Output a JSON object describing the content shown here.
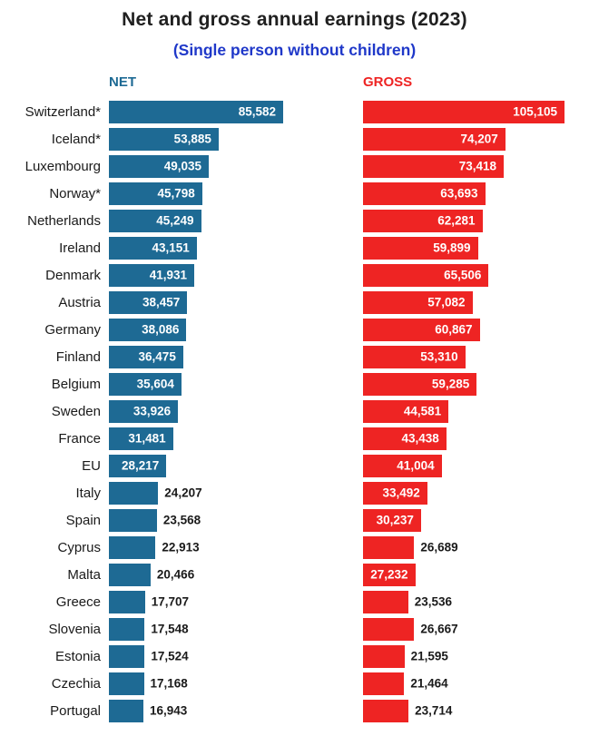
{
  "title": "Net and gross annual earnings (2023)",
  "subtitle": "(Single person without children)",
  "colors": {
    "title": "#202020",
    "subtitle": "#1f38c9",
    "net": "#1e6a94",
    "gross": "#ee2423",
    "value_inside": "#ffffff",
    "value_outside": "#1a1a1a"
  },
  "chart_data": {
    "type": "bar",
    "orientation": "horizontal",
    "title": "Net and gross annual earnings (2023)",
    "subtitle": "(Single person without children)",
    "grid": false,
    "value_labels": true,
    "legend_position": "top",
    "categories": [
      "Switzerland*",
      "Iceland*",
      "Luxembourg",
      "Norway*",
      "Netherlands",
      "Ireland",
      "Denmark",
      "Austria",
      "Germany",
      "Finland",
      "Belgium",
      "Sweden",
      "France",
      "EU",
      "Italy",
      "Spain",
      "Cyprus",
      "Malta",
      "Greece",
      "Slovenia",
      "Estonia",
      "Czechia",
      "Portugal"
    ],
    "series": [
      {
        "name": "NET",
        "color": "#1e6a94",
        "axis_max": 85582,
        "values": [
          85582,
          53885,
          49035,
          45798,
          45249,
          43151,
          41931,
          38457,
          38086,
          36475,
          35604,
          33926,
          31481,
          28217,
          24207,
          23568,
          22913,
          20466,
          17707,
          17548,
          17524,
          17168,
          16943
        ],
        "labels": [
          "85,582",
          "53,885",
          "49,035",
          "45,798",
          "45,249",
          "43,151",
          "41,931",
          "38,457",
          "38,086",
          "36,475",
          "35,604",
          "33,926",
          "31,481",
          "28,217",
          "24,207",
          "23,568",
          "22,913",
          "20,466",
          "17,707",
          "17,548",
          "17,524",
          "17,168",
          "16,943"
        ],
        "label_inside": [
          true,
          true,
          true,
          true,
          true,
          true,
          true,
          true,
          true,
          true,
          true,
          true,
          true,
          true,
          false,
          false,
          false,
          false,
          false,
          false,
          false,
          false,
          false
        ]
      },
      {
        "name": "GROSS",
        "color": "#ee2423",
        "axis_max": 105105,
        "values": [
          105105,
          74207,
          73418,
          63693,
          62281,
          59899,
          65506,
          57082,
          60867,
          53310,
          59285,
          44581,
          43438,
          41004,
          33492,
          30237,
          26689,
          27232,
          23536,
          26667,
          21595,
          21464,
          23714
        ],
        "labels": [
          "105,105",
          "74,207",
          "73,418",
          "63,693",
          "62,281",
          "59,899",
          "65,506",
          "57,082",
          "60,867",
          "53,310",
          "59,285",
          "44,581",
          "43,438",
          "41,004",
          "33,492",
          "30,237",
          "26,689",
          "27,232",
          "23,536",
          "26,667",
          "21,595",
          "21,464",
          "23,714"
        ],
        "label_inside": [
          true,
          true,
          true,
          true,
          true,
          true,
          true,
          true,
          true,
          true,
          true,
          true,
          true,
          true,
          true,
          true,
          false,
          true,
          false,
          false,
          false,
          false,
          false
        ]
      }
    ]
  }
}
